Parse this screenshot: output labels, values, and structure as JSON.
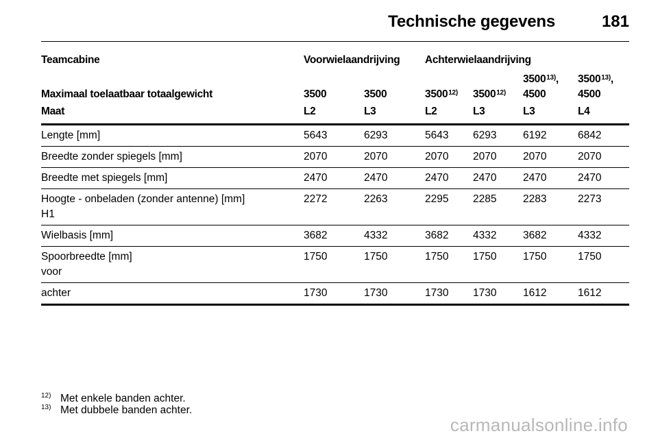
{
  "header": {
    "title": "Technische gegevens",
    "page": "181"
  },
  "table": {
    "group_row": {
      "label": "Teamcabine",
      "front": "Voorwielaandrijving",
      "rear": "Achterwielaandrijving"
    },
    "weight_row": {
      "label": "Maximaal toelaatbaar totaalgewicht",
      "values": [
        {
          "line1": "",
          "line2": "3500",
          "sup": ""
        },
        {
          "line1": "",
          "line2": "3500",
          "sup": ""
        },
        {
          "line1": "",
          "line2": "3500",
          "sup": "12)"
        },
        {
          "line1": "",
          "line2": "3500",
          "sup": "12)"
        },
        {
          "line1": "3500",
          "sup": "13)",
          "after": ",",
          "line2": "4500"
        },
        {
          "line1": "3500",
          "sup": "13)",
          "after": ",",
          "line2": "4500"
        }
      ]
    },
    "size_row": {
      "label": "Maat",
      "values": [
        "L2",
        "L3",
        "L2",
        "L3",
        "L3",
        "L4"
      ]
    },
    "rows": [
      {
        "label": "Lengte [mm]",
        "sub": "",
        "values": [
          "5643",
          "6293",
          "5643",
          "6293",
          "6192",
          "6842"
        ]
      },
      {
        "label": "Breedte zonder spiegels [mm]",
        "sub": "",
        "values": [
          "2070",
          "2070",
          "2070",
          "2070",
          "2070",
          "2070"
        ]
      },
      {
        "label": "Breedte met spiegels [mm]",
        "sub": "",
        "values": [
          "2470",
          "2470",
          "2470",
          "2470",
          "2470",
          "2470"
        ]
      },
      {
        "label": "Hoogte - onbeladen (zonder antenne) [mm]",
        "sub": "H1",
        "values": [
          "2272",
          "2263",
          "2295",
          "2285",
          "2283",
          "2273"
        ]
      },
      {
        "label": "Wielbasis [mm]",
        "sub": "",
        "values": [
          "3682",
          "4332",
          "3682",
          "4332",
          "3682",
          "4332"
        ]
      },
      {
        "label": "Spoorbreedte [mm]",
        "sub": "voor",
        "values": [
          "1750",
          "1750",
          "1750",
          "1750",
          "1750",
          "1750"
        ]
      },
      {
        "label": "achter",
        "sub": "",
        "values": [
          "1730",
          "1730",
          "1730",
          "1730",
          "1612",
          "1612"
        ]
      }
    ]
  },
  "footnotes": [
    {
      "num": "12)",
      "text": "Met enkele banden achter."
    },
    {
      "num": "13)",
      "text": "Met dubbele banden achter."
    }
  ],
  "watermark": "carmanualsonline.info"
}
